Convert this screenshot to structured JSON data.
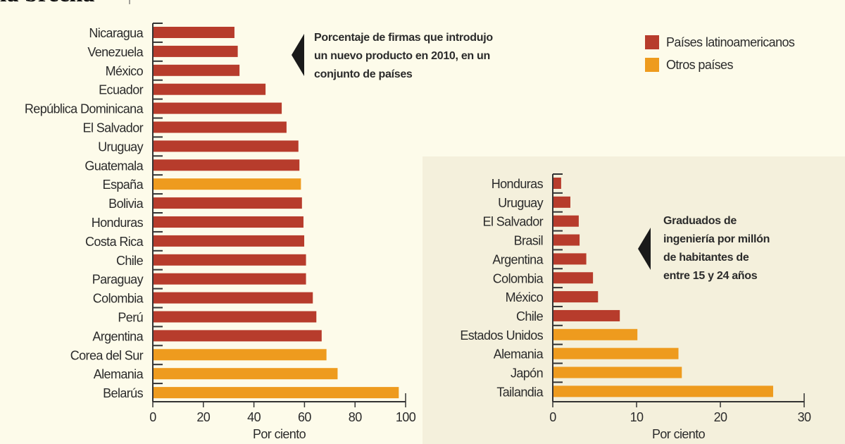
{
  "title": "la brecha",
  "colors": {
    "latam": "#b73c2c",
    "otros": "#ee9b1e",
    "panel": "#f4f0dc",
    "axis": "#333333"
  },
  "legend": [
    {
      "label": "Países latinoamericanos",
      "color": "#b73c2c"
    },
    {
      "label": "Otros países",
      "color": "#ee9b1e"
    }
  ],
  "chart_data": [
    {
      "type": "bar",
      "orientation": "horizontal",
      "note": [
        "Porcentaje de firmas que introdujo",
        "un nuevo producto en 2010, en un",
        "conjunto de países"
      ],
      "xlabel": "Por ciento",
      "xlim": [
        0,
        100
      ],
      "xticks": [
        0,
        20,
        40,
        60,
        80,
        100
      ],
      "categories": [
        "Nicaragua",
        "Venezuela",
        "México",
        "Ecuador",
        "República Dominicana",
        "El Salvador",
        "Uruguay",
        "Guatemala",
        "España",
        "Bolivia",
        "Honduras",
        "Costa Rica",
        "Chile",
        "Paraguay",
        "Colombia",
        "Perú",
        "Argentina",
        "Corea del Sur",
        "Alemania",
        "Belarús"
      ],
      "values": [
        32.3,
        33.6,
        34.3,
        44.6,
        51.0,
        52.9,
        57.6,
        58.0,
        58.6,
        59.0,
        59.6,
        59.9,
        60.6,
        60.6,
        63.3,
        64.7,
        66.8,
        68.7,
        73.1,
        97.3
      ],
      "groups": [
        "latam",
        "latam",
        "latam",
        "latam",
        "latam",
        "latam",
        "latam",
        "latam",
        "otros",
        "latam",
        "latam",
        "latam",
        "latam",
        "latam",
        "latam",
        "latam",
        "latam",
        "otros",
        "otros",
        "otros"
      ]
    },
    {
      "type": "bar",
      "orientation": "horizontal",
      "note": [
        "Graduados de",
        "ingeniería por millón",
        "de habitantes de",
        "entre 15 y 24 años"
      ],
      "xlabel": "Por ciento",
      "xlim": [
        0,
        30
      ],
      "xticks": [
        0,
        10,
        20,
        30
      ],
      "categories": [
        "Honduras",
        "Uruguay",
        "El Salvador",
        "Brasil",
        "Argentina",
        "Colombia",
        "México",
        "Chile",
        "Estados Unidos",
        "Alemania",
        "Japón",
        "Tailandia"
      ],
      "values": [
        1.0,
        2.1,
        3.1,
        3.2,
        4.0,
        4.8,
        5.4,
        8.0,
        10.1,
        15.0,
        15.4,
        26.3
      ],
      "groups": [
        "latam",
        "latam",
        "latam",
        "latam",
        "latam",
        "latam",
        "latam",
        "latam",
        "otros",
        "otros",
        "otros",
        "otros"
      ]
    }
  ]
}
